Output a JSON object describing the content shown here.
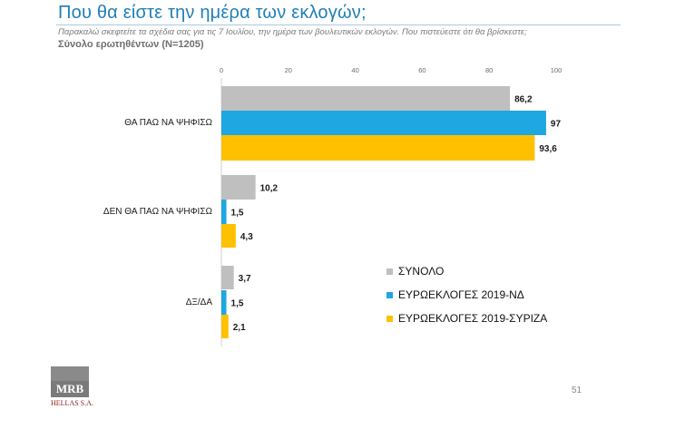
{
  "header": {
    "title": "Που θα είστε την ημέρα των εκλογών;",
    "subtitle": "Παρακαλώ σκεφτείτε τα σχέδια σας για τις 7 Ιουλίου, την ημέρα των βουλευτικών εκλογών. Που πιστεύεστε ότι θα βρίσκεστε;",
    "base": "Σύνολο ερωτηθέντων (N=1205)"
  },
  "chart_data": {
    "type": "bar",
    "orientation": "horizontal",
    "categories": [
      "ΘΑ ΠΑΩ ΝΑ ΨΗΦΙΣΩ",
      "ΔΕΝ ΘΑ ΠΑΩ ΝΑ ΨΗΦΙΣΩ",
      "ΔΞ/ΔΑ"
    ],
    "series": [
      {
        "name": "ΣΥΝΟΛΟ",
        "color": "#bfbfbf",
        "values": [
          86.2,
          10.2,
          3.7
        ],
        "labels": [
          "86,2",
          "10,2",
          "3,7"
        ]
      },
      {
        "name": "ΕΥΡΩΕΚΛΟΓΕΣ 2019-ΝΔ",
        "color": "#1ea7e1",
        "values": [
          97,
          1.5,
          1.5
        ],
        "labels": [
          "97",
          "1,5",
          "1,5"
        ]
      },
      {
        "name": "ΕΥΡΩΕΚΛΟΓΕΣ 2019-ΣΥΡΙΖΑ",
        "color": "#ffc000",
        "values": [
          93.6,
          4.3,
          2.1
        ],
        "labels": [
          "93,6",
          "4,3",
          "2,1"
        ]
      }
    ],
    "xlim": [
      0,
      100
    ],
    "xticks": [
      "0",
      "20",
      "40",
      "60",
      "80",
      "100"
    ],
    "axis_position": "top",
    "grid": false,
    "legend_position": "bottom-right"
  },
  "footer": {
    "logo_text": "MRB",
    "logo_sub": "HELLAS S.A.",
    "page_number": "51"
  }
}
